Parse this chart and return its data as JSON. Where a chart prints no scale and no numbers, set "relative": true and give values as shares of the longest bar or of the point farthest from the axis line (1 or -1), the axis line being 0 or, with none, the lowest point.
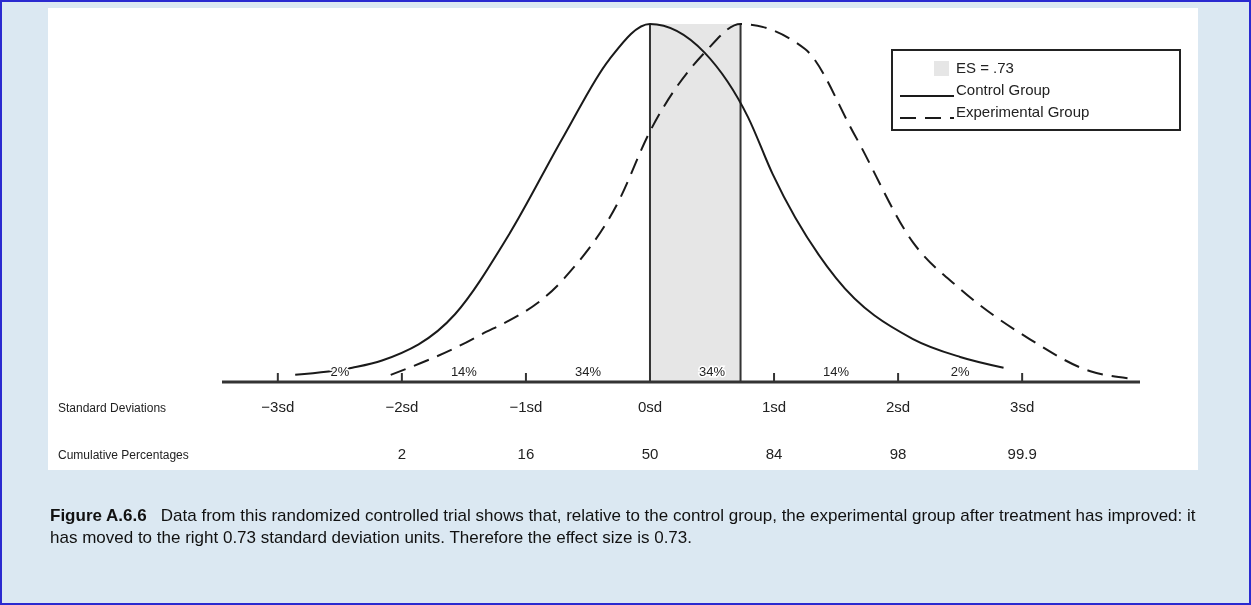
{
  "chart_data": {
    "type": "line",
    "relative": true,
    "title": "Figure A.6.6",
    "subtitle": "Data from this randomized controlled trial shows that, relative to the control group, the experimental group after treatment has improved: it has moved to the right 0.73 standard deviation units. Therefore the effect size is 0.73.",
    "xlabel": "Standard Deviations",
    "x2label": "Cumulative Percentages",
    "xlim": [
      -3.45,
      3.95
    ],
    "xticks": [
      {
        "value": -3,
        "label": "−3sd"
      },
      {
        "value": -2,
        "label": "−2sd"
      },
      {
        "value": -1,
        "label": "−1sd"
      },
      {
        "value": 0,
        "label": "0sd"
      },
      {
        "value": 1,
        "label": "1sd"
      },
      {
        "value": 2,
        "label": "2sd"
      },
      {
        "value": 3,
        "label": "3sd"
      }
    ],
    "series": [
      {
        "name": "ES = .73",
        "type": "area",
        "color": "#e6e6e6",
        "x": [
          0,
          0.73
        ],
        "values": [
          1,
          1
        ]
      },
      {
        "name": "Control Group",
        "color": "#1a1a1a",
        "line_style": "solid",
        "x": [
          -2.86,
          -2.4,
          -2.16,
          -1.57,
          -1.14,
          -0.69,
          -0.33,
          0,
          0.44,
          0.79,
          0.99,
          1.5,
          2.12,
          2.5,
          2.85
        ],
        "values": [
          0.02,
          0.04,
          0.06,
          0.19,
          0.41,
          0.69,
          0.9,
          1,
          0.92,
          0.74,
          0.58,
          0.29,
          0.12,
          0.07,
          0.04
        ]
      },
      {
        "name": "Experimental Group",
        "color": "#1a1a1a",
        "line_style": "dashed",
        "x": [
          -2.09,
          -1.43,
          -0.69,
          -0.26,
          0,
          0.44,
          0.73,
          1.25,
          1.65,
          2.12,
          2.5,
          3.06,
          3.55,
          3.87
        ],
        "values": [
          0.02,
          0.12,
          0.29,
          0.5,
          0.7,
          0.92,
          1,
          0.93,
          0.69,
          0.39,
          0.26,
          0.12,
          0.03,
          0.01
        ]
      }
    ],
    "ref_lines": [
      {
        "axis": "x",
        "value": 0,
        "color": "#333333"
      },
      {
        "axis": "x",
        "value": 0.73,
        "color": "#333333"
      }
    ],
    "annotations": [
      "2%",
      "14%",
      "34%",
      "34%",
      "14%",
      "2%",
      "2",
      "16",
      "50",
      "84",
      "98",
      "99.9"
    ],
    "legend": "top right",
    "grid": false
  }
}
